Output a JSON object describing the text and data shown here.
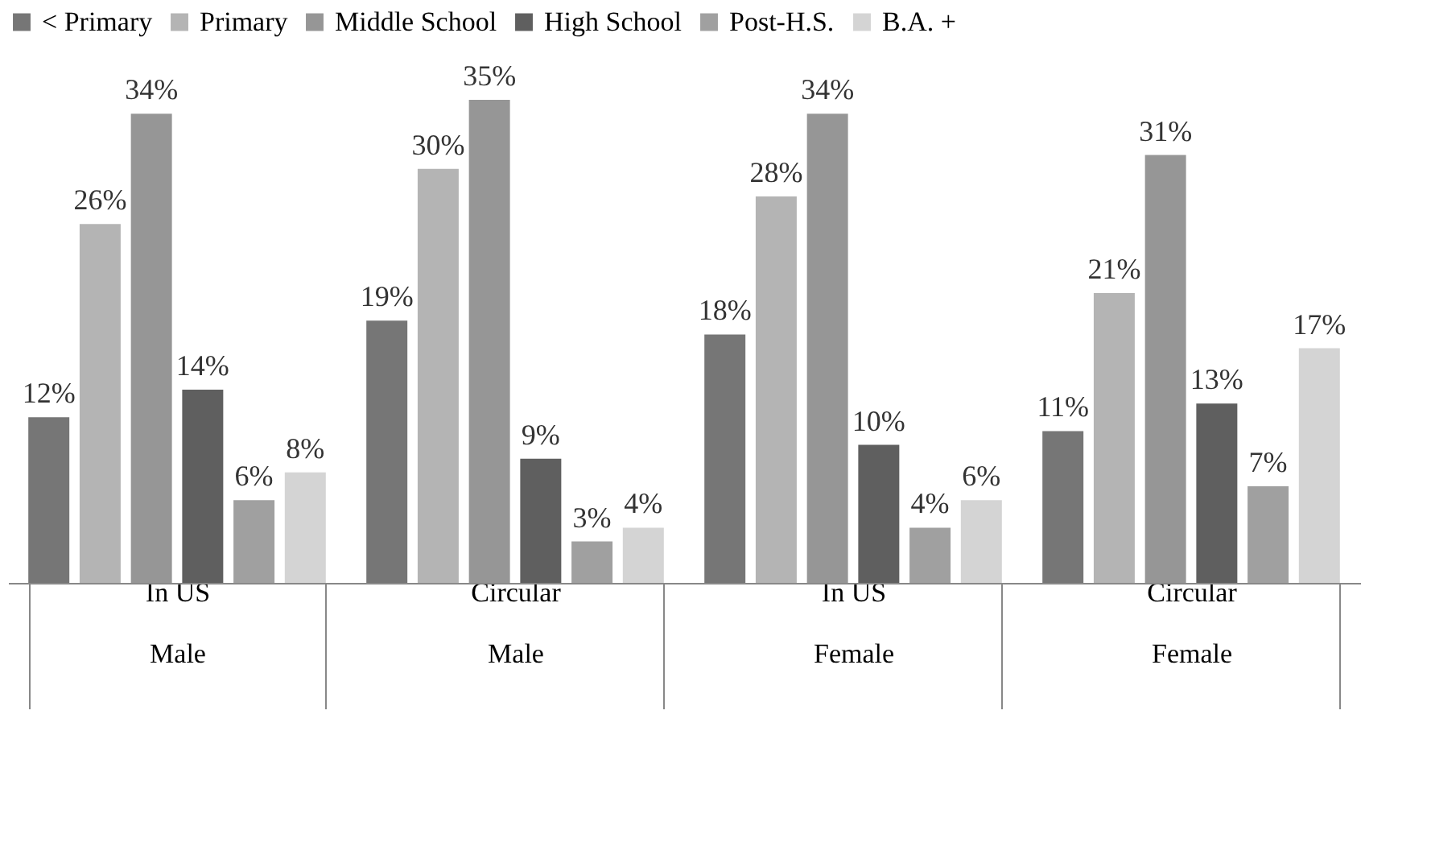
{
  "chart_data": {
    "type": "bar",
    "categories": [
      "In US\nMale",
      "Circular\nMale",
      "In US\nFemale",
      "Circular\nFemale"
    ],
    "series": [
      {
        "name": "< Primary",
        "color": "#767676",
        "values": [
          12,
          19,
          18,
          11
        ],
        "value_labels": [
          "12%",
          "19%",
          "18%",
          "11%"
        ]
      },
      {
        "name": "Primary",
        "color": "#b4b4b4",
        "values": [
          26,
          30,
          28,
          21
        ],
        "value_labels": [
          "26%",
          "30%",
          "28%",
          "21%"
        ]
      },
      {
        "name": "Middle School",
        "color": "#969696",
        "values": [
          34,
          35,
          34,
          31
        ],
        "value_labels": [
          "34%",
          "35%",
          "34%",
          "31%"
        ]
      },
      {
        "name": "High School",
        "color": "#5f5f5f",
        "values": [
          14,
          9,
          10,
          13
        ],
        "value_labels": [
          "14%",
          "9%",
          "10%",
          "13%"
        ]
      },
      {
        "name": "Post-H.S.",
        "color": "#a0a0a0",
        "values": [
          6,
          3,
          4,
          7
        ],
        "value_labels": [
          "6%",
          "3%",
          "4%",
          "7%"
        ]
      },
      {
        "name": "B.A. +",
        "color": "#d4d4d4",
        "values": [
          8,
          4,
          6,
          17
        ],
        "value_labels": [
          "8%",
          "4%",
          "6%",
          "17%"
        ]
      }
    ],
    "legend": "top",
    "tick_labels": "x"
  }
}
